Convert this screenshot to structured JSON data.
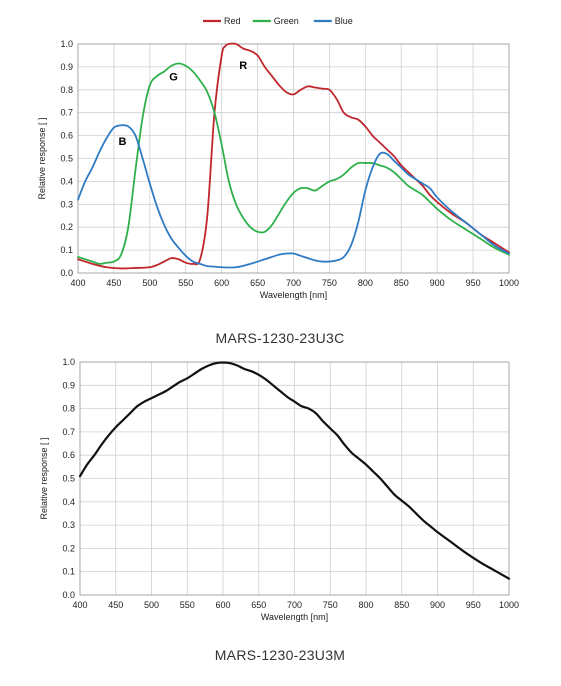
{
  "chart_data": [
    {
      "type": "line",
      "caption": "MARS-1230-23U3C",
      "xlabel": "Wavelength [nm]",
      "ylabel": "Relative response [ ]",
      "xlim": [
        400,
        1000
      ],
      "ylim": [
        0,
        1.0
      ],
      "x_ticks": [
        400,
        450,
        500,
        550,
        600,
        650,
        700,
        750,
        800,
        850,
        900,
        950,
        1000
      ],
      "y_ticks": [
        "0.0",
        "0.1",
        "0.2",
        "0.3",
        "0.4",
        "0.5",
        "0.6",
        "0.7",
        "0.8",
        "0.9",
        "1.0"
      ],
      "grid": true,
      "legend_position": "top-center",
      "series": [
        {
          "name": "Red",
          "color": "#c0272d",
          "x": [
            400,
            420,
            440,
            460,
            480,
            500,
            510,
            520,
            530,
            540,
            550,
            560,
            570,
            580,
            590,
            600,
            605,
            610,
            620,
            630,
            640,
            650,
            660,
            670,
            680,
            690,
            700,
            710,
            720,
            730,
            740,
            750,
            760,
            770,
            780,
            790,
            800,
            810,
            820,
            830,
            840,
            850,
            860,
            870,
            880,
            890,
            900,
            920,
            940,
            960,
            980,
            1000
          ],
          "y": [
            0.06,
            0.04,
            0.025,
            0.02,
            0.022,
            0.025,
            0.035,
            0.05,
            0.065,
            0.06,
            0.045,
            0.04,
            0.06,
            0.25,
            0.7,
            0.95,
            0.99,
            1.0,
            1.0,
            0.98,
            0.97,
            0.95,
            0.9,
            0.86,
            0.82,
            0.79,
            0.78,
            0.8,
            0.815,
            0.81,
            0.805,
            0.8,
            0.76,
            0.7,
            0.68,
            0.67,
            0.64,
            0.6,
            0.57,
            0.54,
            0.51,
            0.47,
            0.44,
            0.41,
            0.38,
            0.34,
            0.31,
            0.26,
            0.22,
            0.17,
            0.13,
            0.09
          ]
        },
        {
          "name": "Green",
          "color": "#2fb04b",
          "x": [
            400,
            410,
            420,
            430,
            440,
            450,
            460,
            470,
            480,
            490,
            500,
            510,
            520,
            530,
            540,
            550,
            560,
            570,
            580,
            590,
            600,
            610,
            620,
            630,
            640,
            650,
            660,
            670,
            680,
            690,
            700,
            710,
            720,
            730,
            740,
            750,
            760,
            770,
            780,
            790,
            800,
            810,
            820,
            830,
            840,
            850,
            860,
            870,
            880,
            890,
            900,
            920,
            940,
            960,
            980,
            1000
          ],
          "y": [
            0.07,
            0.06,
            0.05,
            0.04,
            0.045,
            0.05,
            0.08,
            0.2,
            0.45,
            0.68,
            0.82,
            0.86,
            0.88,
            0.905,
            0.915,
            0.905,
            0.88,
            0.84,
            0.79,
            0.7,
            0.56,
            0.4,
            0.3,
            0.24,
            0.2,
            0.18,
            0.18,
            0.21,
            0.26,
            0.31,
            0.35,
            0.37,
            0.37,
            0.36,
            0.38,
            0.4,
            0.41,
            0.43,
            0.46,
            0.48,
            0.48,
            0.48,
            0.47,
            0.46,
            0.44,
            0.41,
            0.38,
            0.36,
            0.34,
            0.31,
            0.28,
            0.23,
            0.19,
            0.15,
            0.11,
            0.08
          ]
        },
        {
          "name": "Blue",
          "color": "#2f7bc4",
          "x": [
            400,
            410,
            420,
            430,
            440,
            450,
            460,
            470,
            480,
            490,
            500,
            510,
            520,
            530,
            540,
            550,
            560,
            570,
            580,
            590,
            600,
            620,
            640,
            660,
            680,
            690,
            700,
            710,
            720,
            730,
            740,
            750,
            760,
            770,
            780,
            790,
            800,
            810,
            820,
            830,
            840,
            850,
            860,
            870,
            880,
            890,
            900,
            920,
            940,
            960,
            980,
            1000
          ],
          "y": [
            0.32,
            0.4,
            0.46,
            0.53,
            0.59,
            0.635,
            0.645,
            0.64,
            0.6,
            0.5,
            0.39,
            0.29,
            0.21,
            0.15,
            0.11,
            0.075,
            0.05,
            0.04,
            0.03,
            0.028,
            0.025,
            0.025,
            0.04,
            0.06,
            0.08,
            0.085,
            0.085,
            0.075,
            0.065,
            0.055,
            0.05,
            0.05,
            0.055,
            0.07,
            0.12,
            0.22,
            0.36,
            0.46,
            0.52,
            0.52,
            0.49,
            0.46,
            0.43,
            0.41,
            0.39,
            0.37,
            0.33,
            0.27,
            0.22,
            0.17,
            0.12,
            0.085
          ]
        }
      ],
      "annotations": [
        {
          "text": "B",
          "x": 462,
          "y": 0.56
        },
        {
          "text": "G",
          "x": 533,
          "y": 0.84
        },
        {
          "text": "R",
          "x": 630,
          "y": 0.89
        }
      ]
    },
    {
      "type": "line",
      "caption": "MARS-1230-23U3M",
      "xlabel": "Wavelength [nm]",
      "ylabel": "Relative response [ ]",
      "xlim": [
        400,
        1000
      ],
      "ylim": [
        0,
        1.0
      ],
      "x_ticks": [
        400,
        450,
        500,
        550,
        600,
        650,
        700,
        750,
        800,
        850,
        900,
        950,
        1000
      ],
      "y_ticks": [
        "0.0",
        "0.1",
        "0.2",
        "0.3",
        "0.4",
        "0.5",
        "0.6",
        "0.7",
        "0.8",
        "0.9",
        "1.0"
      ],
      "grid": true,
      "series": [
        {
          "color": "#111111",
          "x": [
            400,
            410,
            420,
            430,
            440,
            450,
            460,
            470,
            480,
            490,
            500,
            510,
            520,
            530,
            540,
            550,
            560,
            570,
            580,
            590,
            600,
            610,
            620,
            630,
            640,
            650,
            660,
            670,
            680,
            690,
            700,
            710,
            720,
            730,
            740,
            750,
            760,
            770,
            780,
            790,
            800,
            810,
            820,
            830,
            840,
            850,
            860,
            870,
            880,
            890,
            900,
            920,
            940,
            960,
            980,
            1000
          ],
          "y": [
            0.51,
            0.56,
            0.6,
            0.645,
            0.685,
            0.72,
            0.75,
            0.78,
            0.81,
            0.83,
            0.845,
            0.86,
            0.875,
            0.895,
            0.915,
            0.93,
            0.95,
            0.97,
            0.985,
            0.995,
            0.998,
            0.995,
            0.985,
            0.97,
            0.96,
            0.945,
            0.925,
            0.9,
            0.875,
            0.85,
            0.83,
            0.81,
            0.8,
            0.78,
            0.745,
            0.715,
            0.685,
            0.645,
            0.61,
            0.585,
            0.56,
            0.53,
            0.5,
            0.465,
            0.43,
            0.405,
            0.38,
            0.35,
            0.32,
            0.295,
            0.27,
            0.225,
            0.18,
            0.14,
            0.105,
            0.07
          ]
        }
      ]
    }
  ]
}
